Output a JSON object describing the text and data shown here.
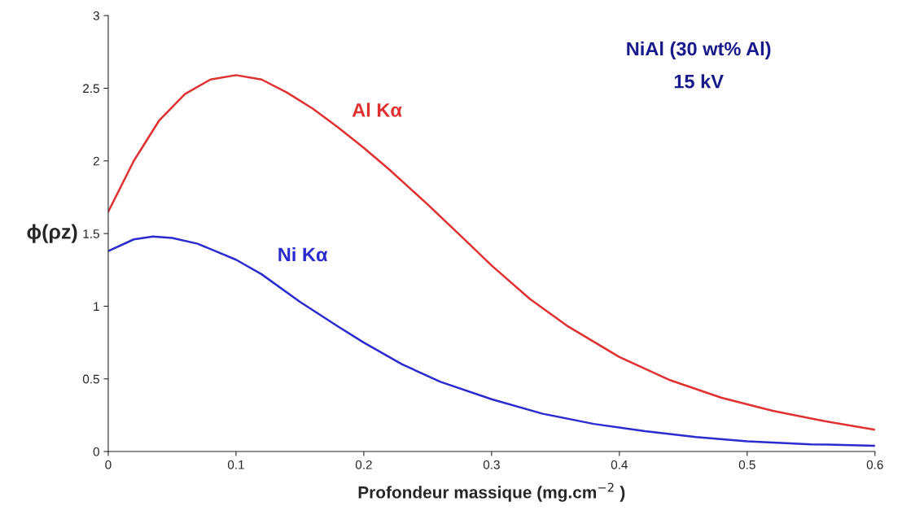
{
  "chart_data": {
    "type": "line",
    "xlabel": "Profondeur massique (mg.cm$^{−2}$ )",
    "ylabel": "ϕ(ρz)",
    "annotations": [
      "NiAl (30 wt% Al)",
      "15 kV"
    ],
    "xlim": [
      0,
      0.6
    ],
    "xticks": [
      0,
      0.1,
      0.2,
      0.3,
      0.4,
      0.5,
      0.6
    ],
    "ylim": [
      0,
      3
    ],
    "yticks": [
      0,
      0.5,
      1,
      1.5,
      2,
      2.5,
      3
    ],
    "grid": false,
    "legend": false,
    "marker": "none",
    "line_style": "solid",
    "series": [
      {
        "name": "Al Kα",
        "color": "#e03030",
        "x": [
          0,
          0.02,
          0.04,
          0.06,
          0.08,
          0.1,
          0.12,
          0.14,
          0.16,
          0.18,
          0.2,
          0.22,
          0.25,
          0.28,
          0.3,
          0.33,
          0.36,
          0.4,
          0.44,
          0.48,
          0.52,
          0.56,
          0.6
        ],
        "values": [
          1.65,
          2.0,
          2.28,
          2.46,
          2.56,
          2.59,
          2.56,
          2.47,
          2.36,
          2.23,
          2.09,
          1.94,
          1.7,
          1.45,
          1.28,
          1.05,
          0.86,
          0.65,
          0.49,
          0.37,
          0.28,
          0.21,
          0.15
        ]
      },
      {
        "name": "Ni Kα",
        "color": "#2a2ad0",
        "x": [
          0,
          0.02,
          0.035,
          0.05,
          0.07,
          0.1,
          0.12,
          0.15,
          0.18,
          0.2,
          0.23,
          0.26,
          0.3,
          0.34,
          0.38,
          0.42,
          0.46,
          0.5,
          0.55,
          0.6
        ],
        "values": [
          1.38,
          1.46,
          1.48,
          1.47,
          1.43,
          1.32,
          1.22,
          1.03,
          0.86,
          0.75,
          0.6,
          0.48,
          0.36,
          0.26,
          0.19,
          0.14,
          0.1,
          0.07,
          0.05,
          0.04
        ]
      }
    ]
  }
}
